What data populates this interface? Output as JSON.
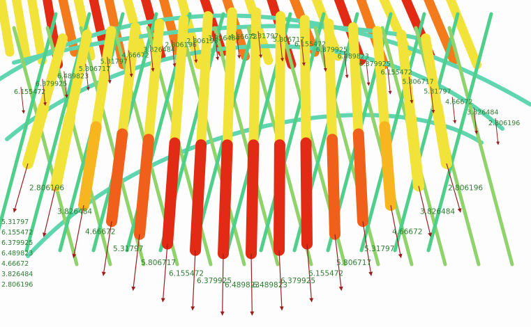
{
  "scene": {
    "title": "",
    "colors": {
      "low": "#7bd96b",
      "mid": "#f2e33a",
      "high": "#e12b14",
      "ring": "#5fd6b0",
      "arrow": "#9b1c1c",
      "label": "#2e7d32"
    },
    "front_row_labels": [
      "2.806196",
      "3.826484",
      "4.66672",
      "5.31797",
      "5.806717",
      "6.155472",
      "6.379925",
      "6.489823",
      "6.489823",
      "6.379925",
      "6.155472",
      "5.806717",
      "5.31797",
      "4.66672",
      "3.826484",
      "2.806196"
    ],
    "mid_row_labels": [
      "6.155472",
      "6.379925",
      "6.489823",
      "5.806717",
      "5.31797",
      "4.66672",
      "3.826484",
      "2.806196",
      "2.806196",
      "3.826484",
      "4.66672",
      "5.31797",
      "5.806717",
      "6.155472",
      "6.379925",
      "6.489823",
      "6.379925",
      "6.155472",
      "5.806717",
      "5.31797",
      "4.66672",
      "3.826484",
      "2.806196"
    ],
    "left_edge_labels": [
      "5.31797",
      "6.155472",
      "6.379925",
      "6.489823",
      "4.66672",
      "3.826484",
      "2.806196"
    ]
  }
}
